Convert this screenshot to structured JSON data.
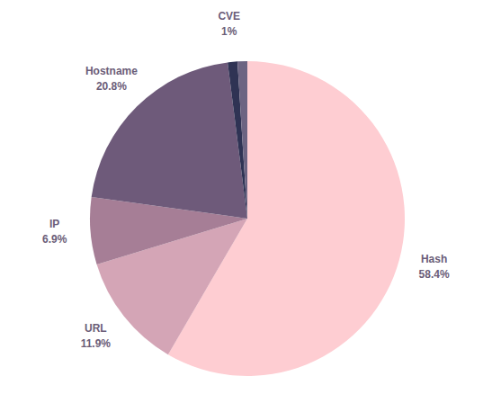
{
  "chart_data": {
    "type": "pie",
    "categories": [
      "Hash",
      "URL",
      "IP",
      "Hostname",
      "CVE",
      null
    ],
    "values": [
      58.4,
      11.9,
      6.9,
      20.8,
      1,
      1
    ],
    "value_labels": [
      "58.4%",
      "11.9%",
      "6.9%",
      "20.8%",
      "1%",
      null
    ],
    "colors": [
      "#fecdd2",
      "#d4a5b6",
      "#a67e96",
      "#6e5a7a",
      "#2f3354",
      "#6c6482"
    ],
    "data_labels": true
  }
}
